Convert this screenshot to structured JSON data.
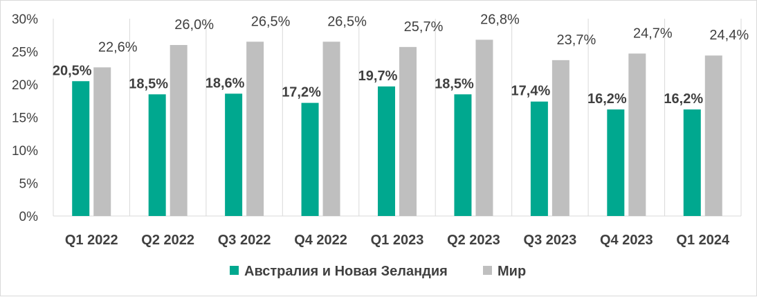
{
  "chart_data": {
    "type": "bar",
    "categories": [
      "Q1 2022",
      "Q2 2022",
      "Q3 2022",
      "Q4 2022",
      "Q1 2023",
      "Q2 2023",
      "Q3 2023",
      "Q4 2023",
      "Q1 2024"
    ],
    "series": [
      {
        "name": "Австралия и Новая Зеландия",
        "color": "#00a88f",
        "values": [
          20.5,
          18.5,
          18.6,
          17.2,
          19.7,
          18.5,
          17.4,
          16.2,
          16.2
        ],
        "labels": [
          "20,5%",
          "18,5%",
          "18,6%",
          "17,2%",
          "19,7%",
          "18,5%",
          "17,4%",
          "16,2%",
          "16,2%"
        ]
      },
      {
        "name": "Мир",
        "color": "#bfbfbf",
        "values": [
          22.6,
          26.0,
          26.5,
          26.5,
          25.7,
          26.8,
          23.7,
          24.7,
          24.4
        ],
        "labels": [
          "22,6%",
          "26,0%",
          "26,5%",
          "26,5%",
          "25,7%",
          "26,8%",
          "23,7%",
          "24,7%",
          "24,4%"
        ]
      }
    ],
    "ylim": [
      0,
      30
    ],
    "yticks": [
      0,
      5,
      10,
      15,
      20,
      25,
      30
    ],
    "ytick_labels": [
      "0%",
      "5%",
      "10%",
      "15%",
      "20%",
      "25%",
      "30%"
    ],
    "grid": "vertical category separators",
    "legend": "bottom-center"
  }
}
